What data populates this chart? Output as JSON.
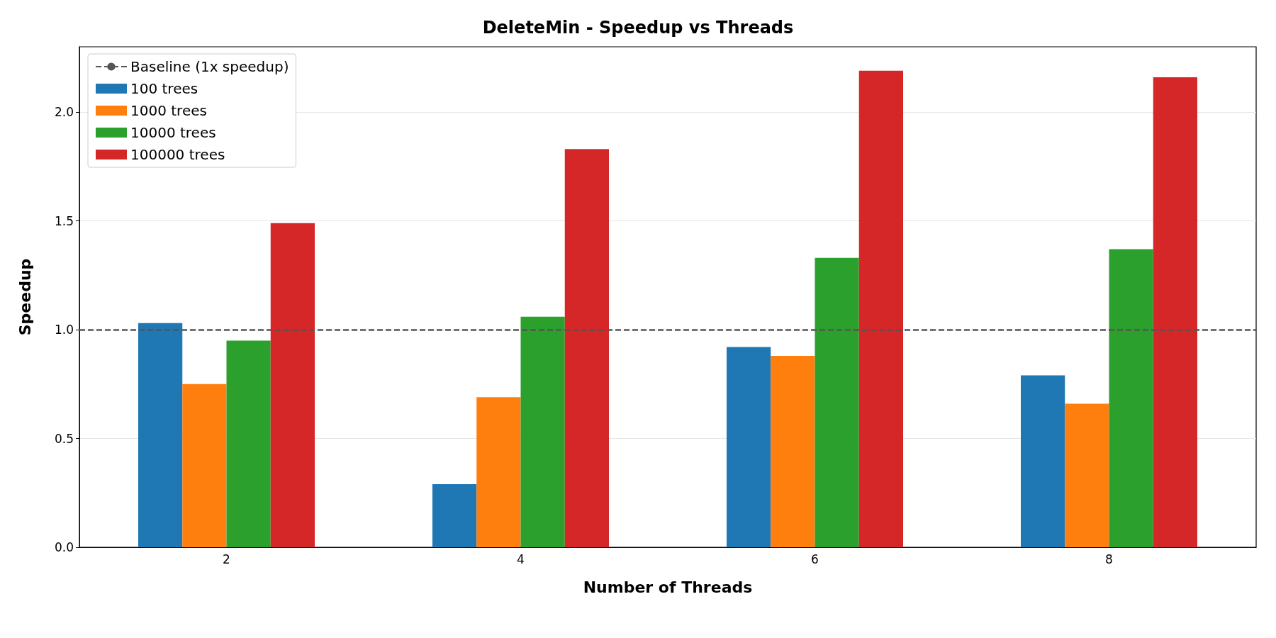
{
  "chart_data": {
    "type": "bar",
    "title": "DeleteMin - Speedup vs Threads",
    "xlabel": "Number of Threads",
    "ylabel": "Speedup",
    "categories": [
      "2",
      "4",
      "6",
      "8"
    ],
    "series": [
      {
        "name": "100 trees",
        "color": "#1f77b4",
        "values": [
          1.03,
          0.29,
          0.92,
          0.79
        ]
      },
      {
        "name": "1000 trees",
        "color": "#ff7f0e",
        "values": [
          0.75,
          0.69,
          0.88,
          0.66
        ]
      },
      {
        "name": "10000 trees",
        "color": "#2ca02c",
        "values": [
          0.95,
          1.06,
          1.33,
          1.37
        ]
      },
      {
        "name": "100000 trees",
        "color": "#d62728",
        "values": [
          1.49,
          1.83,
          2.19,
          2.16
        ]
      }
    ],
    "ylim": [
      0,
      2.3
    ],
    "yticks": [
      {
        "value": 0,
        "label": "0.0"
      },
      0.5,
      {
        "value": 1,
        "label": "1.0"
      },
      1.5,
      {
        "value": 2,
        "label": "2.0"
      }
    ],
    "ref_lines": [
      {
        "axis": "y",
        "value": 1,
        "label": "Baseline (1x speedup)",
        "color": "#555555",
        "line_style": "dashed"
      }
    ],
    "grid": "y",
    "legend": "top left"
  }
}
